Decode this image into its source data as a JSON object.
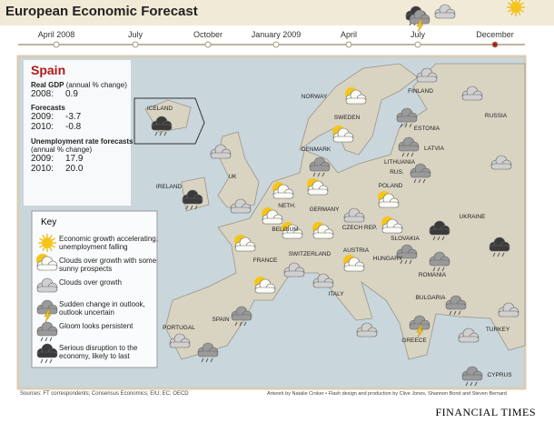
{
  "header": {
    "title": "European Economic Forecast",
    "timeline": [
      "April 2008",
      "July",
      "October",
      "January 2009",
      "April",
      "July",
      "December"
    ]
  },
  "spain": {
    "name": "Spain",
    "gdp_label": "Real GDP",
    "gdp_unit": "(annual % change)",
    "gdp_rows": [
      [
        "2008:",
        "0.9"
      ]
    ],
    "forecasts_label": "Forecasts",
    "forecast_rows": [
      [
        "2009:",
        "-3.7"
      ],
      [
        "2010:",
        "-0.8"
      ]
    ],
    "unemployment_label": "Unemployment rate forecasts",
    "unemployment_unit": "(annual % change)",
    "unemployment_rows": [
      [
        "2009:",
        "17.9"
      ],
      [
        "2010:",
        "20.0"
      ]
    ]
  },
  "key": {
    "title": "Key",
    "items": [
      "Economic growth accelerating, unemployment falling",
      "Clouds over growth with some sunny prospects",
      "Clouds over growth",
      "Sudden change in outlook, outlook uncertain",
      "Gloom looks persistent",
      "Serious disruption to the economy, likely to last"
    ]
  },
  "map": {
    "countries": [
      "NORWAY",
      "FINLAND",
      "SWEDEN",
      "RUSSIA",
      "ICELAND",
      "ESTONIA",
      "DENMARK",
      "LATVIA",
      "LITHUANIA",
      "RUS.",
      "IRELAND",
      "UK",
      "POLAND",
      "NETH.",
      "GERMANY",
      "BELGIUM",
      "CZECH REP.",
      "UKRAINE",
      "SLOVAKIA",
      "FRANCE",
      "AUSTRIA",
      "HUNGARY",
      "SWITZERLAND",
      "ROMANIA",
      "ITALY",
      "PORTUGAL",
      "SPAIN",
      "BULGARIA",
      "TURKEY",
      "GREECE",
      "CYPRUS"
    ]
  },
  "footer": {
    "sources": "Sources: FT correspondents; Consensus Economics; EIU; EC; OECD",
    "credits": "Artwork by Natalie Croker • Flash design and production by Clive Jones, Shannon Bond and Steven Bernard",
    "brand": "FINANCIAL TIMES"
  }
}
